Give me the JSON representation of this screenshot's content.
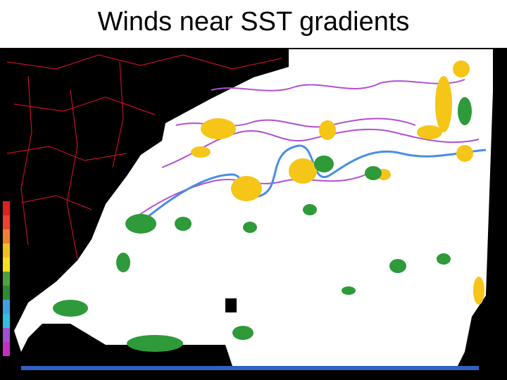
{
  "header": {
    "title": "Winds near SST gradients"
  }
}
